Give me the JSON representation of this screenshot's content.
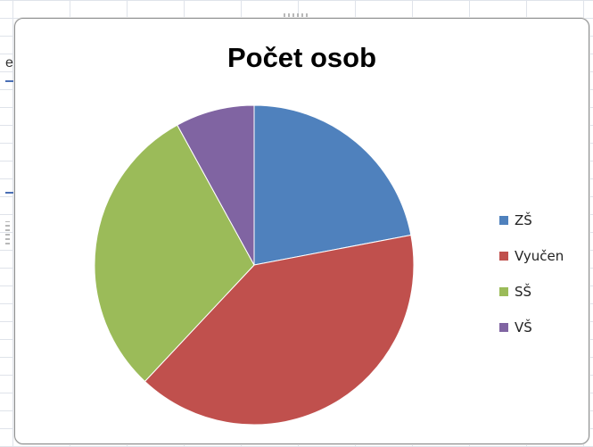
{
  "sheet": {
    "partial_cell_text": "e"
  },
  "chart_data": {
    "type": "pie",
    "title": "Počet osob",
    "categories": [
      "ZŠ",
      "Vyučen",
      "SŠ",
      "VŠ"
    ],
    "values": [
      22,
      40,
      30,
      8
    ],
    "colors": [
      "#4F81BD",
      "#C0504D",
      "#9BBB59",
      "#8064A2"
    ],
    "legend": "right",
    "start": "12 o'clock",
    "direction": "clockwise"
  }
}
